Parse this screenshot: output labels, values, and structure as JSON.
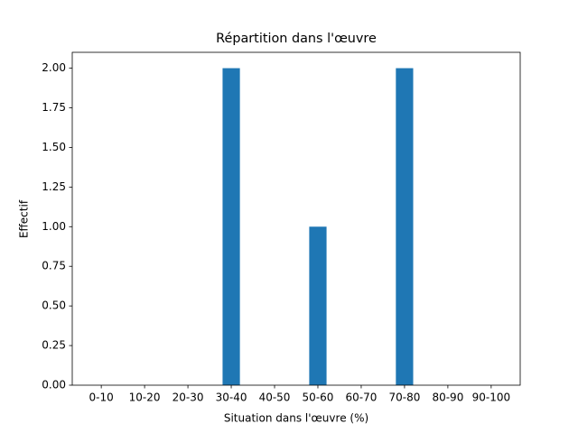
{
  "chart_data": {
    "type": "bar",
    "title": "Répartition dans l'œuvre",
    "x_label": "Situation dans l'œuvre (%)",
    "y_label": "Effectif",
    "categories": [
      "0-10",
      "10-20",
      "20-30",
      "30-40",
      "40-50",
      "50-60",
      "60-70",
      "70-80",
      "80-90",
      "90-100"
    ],
    "values": [
      0,
      0,
      0,
      2,
      0,
      1,
      0,
      2,
      0,
      0
    ],
    "color": "#1f77b4",
    "ylim": [
      0,
      2.1
    ],
    "yticks": [
      {
        "value": 0,
        "label": "0.00"
      },
      {
        "value": 0.25,
        "label": "0.25"
      },
      {
        "value": 0.5,
        "label": "0.50"
      },
      {
        "value": 0.75,
        "label": "0.75"
      },
      {
        "value": 1,
        "label": "1.00"
      },
      {
        "value": 1.25,
        "label": "1.25"
      },
      {
        "value": 1.5,
        "label": "1.50"
      },
      {
        "value": 1.75,
        "label": "1.75"
      },
      {
        "value": 2,
        "label": "2.00"
      }
    ],
    "grid": false
  }
}
